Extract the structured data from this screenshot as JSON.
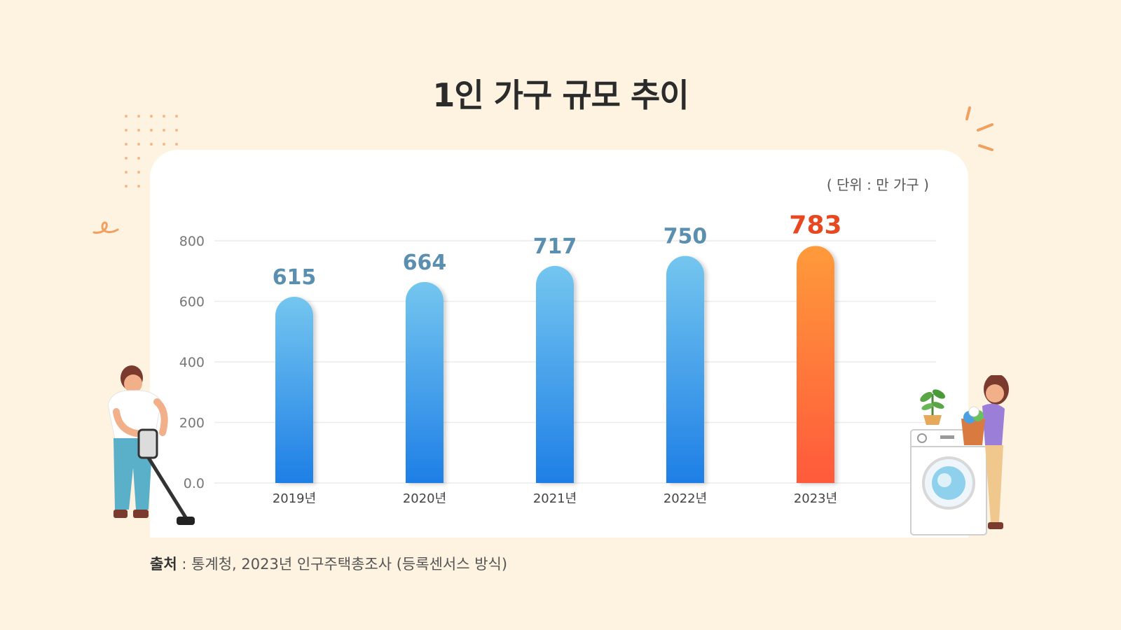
{
  "chart_data": {
    "type": "bar",
    "title": "1인 가구 규모 추이",
    "unit": "( 단위 : 만 가구 )",
    "categories": [
      "2019년",
      "2020년",
      "2021년",
      "2022년",
      "2023년"
    ],
    "values": [
      615,
      664,
      717,
      750,
      783
    ],
    "value_labels": [
      "615",
      "664",
      "717",
      "750",
      "783"
    ],
    "yticks": [
      "0.0",
      "200",
      "400",
      "600",
      "800"
    ],
    "ytick_values": [
      0,
      200,
      400,
      600,
      800
    ],
    "ylim": [
      0,
      800
    ],
    "grid": true,
    "highlight_index": 4,
    "colors": {
      "bar_top": "#74c6ef",
      "bar_bottom": "#1e7fe6",
      "highlight_top": "#ff9a3a",
      "highlight_bottom": "#ff5a3a",
      "label": "#5b8fb0",
      "highlight_label": "#e8481f"
    }
  },
  "source": {
    "prefix": "출처",
    "text": " : 통계청, 2023년 인구주택총조사 (등록센서스 방식)"
  },
  "decorations": [
    "person-vacuum-illustration",
    "person-laundry-illustration",
    "washing-machine-illustration",
    "plant-icon",
    "dot-grid",
    "squiggle"
  ]
}
